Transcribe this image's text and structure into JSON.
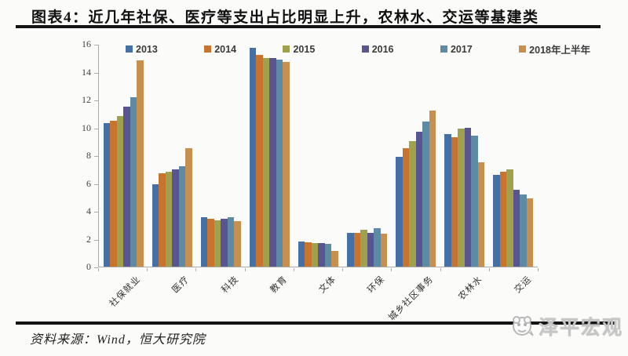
{
  "header": {
    "title": "图表4：近几年社保、医疗等支出占比明显上升，农林水、交运等基建类"
  },
  "chart_data": {
    "type": "bar",
    "title": "图表4：近几年社保、医疗等支出占比明显上升，农林水、交运等基建类",
    "categories": [
      "社保就业",
      "医疗",
      "科技",
      "教育",
      "文体",
      "环保",
      "城乡社区事务",
      "农林水",
      "交运"
    ],
    "series": [
      {
        "name": "2013",
        "color": "#4470A6",
        "values": [
          10.3,
          5.9,
          3.55,
          15.7,
          1.8,
          2.4,
          7.9,
          9.5,
          6.6
        ]
      },
      {
        "name": "2014",
        "color": "#C8742F",
        "values": [
          10.5,
          6.7,
          3.45,
          15.2,
          1.75,
          2.45,
          8.5,
          9.3,
          6.8
        ]
      },
      {
        "name": "2015",
        "color": "#A0A14C",
        "values": [
          10.8,
          6.8,
          3.3,
          15.0,
          1.7,
          2.65,
          9.0,
          9.9,
          7.0
        ]
      },
      {
        "name": "2016",
        "color": "#5A5590",
        "values": [
          11.5,
          7.0,
          3.45,
          15.0,
          1.7,
          2.45,
          9.7,
          10.0,
          5.5
        ]
      },
      {
        "name": "2017",
        "color": "#5D8BA6",
        "values": [
          12.2,
          7.2,
          3.55,
          14.9,
          1.65,
          2.75,
          10.4,
          9.4,
          5.2
        ]
      },
      {
        "name": "2018年上半年",
        "color": "#C8904F",
        "values": [
          14.8,
          8.5,
          3.25,
          14.7,
          1.15,
          2.35,
          11.2,
          7.5,
          4.9
        ]
      }
    ],
    "ylim": [
      0,
      16
    ],
    "yticks": [
      0,
      2,
      4,
      6,
      8,
      10,
      12,
      14,
      16
    ],
    "xlabel": "",
    "ylabel": "",
    "grid": false,
    "legend_position": "top"
  },
  "footer": {
    "source": "资料来源：Wind，恒大研究院",
    "logo_text": "泽平宏观"
  }
}
